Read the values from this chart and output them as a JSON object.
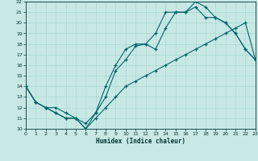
{
  "xlabel": "Humidex (Indice chaleur)",
  "bg_color": "#c8e8e5",
  "line_color": "#006666",
  "grid_color": "#a8d8d4",
  "xlim": [
    0,
    23
  ],
  "ylim": [
    10,
    22
  ],
  "xticks": [
    0,
    1,
    2,
    3,
    4,
    5,
    6,
    7,
    8,
    9,
    10,
    11,
    12,
    13,
    14,
    15,
    16,
    17,
    18,
    19,
    20,
    21,
    22,
    23
  ],
  "yticks": [
    10,
    11,
    12,
    13,
    14,
    15,
    16,
    17,
    18,
    19,
    20,
    21,
    22
  ],
  "line1_x": [
    0,
    1,
    2,
    3,
    4,
    5,
    6,
    7,
    8,
    9,
    10,
    11,
    12,
    13,
    14,
    15,
    16,
    17,
    18,
    19,
    20,
    21,
    22,
    23
  ],
  "line1_y": [
    14.0,
    12.5,
    12.0,
    11.5,
    11.0,
    11.0,
    10.0,
    11.0,
    12.0,
    13.0,
    14.0,
    14.5,
    15.0,
    15.5,
    16.0,
    16.5,
    17.0,
    17.5,
    18.0,
    18.5,
    19.0,
    19.5,
    20.0,
    16.5
  ],
  "line2_x": [
    0,
    1,
    2,
    3,
    4,
    5,
    6,
    7,
    8,
    9,
    10,
    11,
    12,
    13,
    14,
    15,
    16,
    17,
    18,
    19,
    20,
    21,
    22,
    23
  ],
  "line2_y": [
    14.0,
    12.5,
    12.0,
    11.5,
    11.0,
    11.0,
    10.0,
    11.5,
    13.0,
    15.5,
    16.5,
    17.8,
    18.0,
    17.5,
    19.5,
    21.0,
    21.0,
    21.5,
    20.5,
    20.5,
    20.0,
    19.0,
    17.5,
    16.5
  ],
  "line3_x": [
    0,
    1,
    2,
    3,
    4,
    5,
    6,
    7,
    8,
    9,
    10,
    11,
    12,
    13,
    14,
    15,
    16,
    17,
    18,
    19,
    20,
    21,
    22,
    23
  ],
  "line3_y": [
    14.0,
    12.5,
    12.0,
    12.0,
    11.5,
    11.0,
    10.5,
    11.5,
    14.0,
    16.0,
    17.5,
    18.0,
    18.0,
    19.0,
    21.0,
    21.0,
    21.0,
    22.0,
    21.5,
    20.5,
    20.0,
    19.0,
    17.5,
    16.5
  ]
}
